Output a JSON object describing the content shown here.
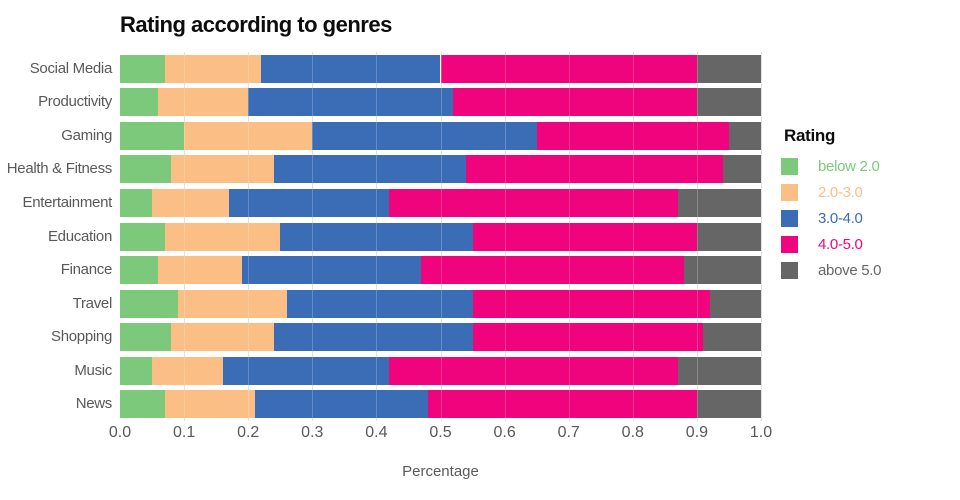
{
  "title": "Rating according to genres",
  "xlabel": "Percentage",
  "legend": {
    "title": "Rating",
    "entries": [
      {
        "label": "below 2.0",
        "color": "#7CC97C"
      },
      {
        "label": "2.0-3.0",
        "color": "#FBBE85"
      },
      {
        "label": "3.0-4.0",
        "color": "#3A6DB5"
      },
      {
        "label": "4.0-5.0",
        "color": "#F0047E"
      },
      {
        "label": "above 5.0",
        "color": "#666666"
      }
    ]
  },
  "colors": {
    "axis_text": "#595959",
    "gridline": "#d9d9d9",
    "title_text": "#0d0d0d"
  },
  "chart_data": {
    "type": "bar",
    "orientation": "horizontal",
    "stacked": true,
    "title": "Rating according to genres",
    "xlabel": "Percentage",
    "ylabel": "",
    "xlim": [
      0.0,
      1.0
    ],
    "x_ticks": [
      "0.0",
      "0.1",
      "0.2",
      "0.3",
      "0.4",
      "0.5",
      "0.6",
      "0.7",
      "0.8",
      "0.9",
      "1.0"
    ],
    "grid": true,
    "legend_position": "right",
    "categories": [
      "Social Media",
      "Productivity",
      "Gaming",
      "Health & Fitness",
      "Entertainment",
      "Education",
      "Finance",
      "Travel",
      "Shopping",
      "Music",
      "News"
    ],
    "series": [
      {
        "name": "below 2.0",
        "color": "#7CC97C",
        "values": [
          0.07,
          0.06,
          0.1,
          0.08,
          0.05,
          0.07,
          0.06,
          0.09,
          0.08,
          0.05,
          0.07
        ]
      },
      {
        "name": "2.0-3.0",
        "color": "#FBBE85",
        "values": [
          0.15,
          0.14,
          0.2,
          0.16,
          0.12,
          0.18,
          0.13,
          0.17,
          0.16,
          0.11,
          0.14
        ]
      },
      {
        "name": "3.0-4.0",
        "color": "#3A6DB5",
        "values": [
          0.28,
          0.32,
          0.35,
          0.3,
          0.25,
          0.3,
          0.28,
          0.29,
          0.31,
          0.26,
          0.27
        ]
      },
      {
        "name": "4.0-5.0",
        "color": "#F0047E",
        "values": [
          0.4,
          0.38,
          0.3,
          0.4,
          0.45,
          0.35,
          0.41,
          0.37,
          0.36,
          0.45,
          0.42
        ]
      },
      {
        "name": "above 5.0",
        "color": "#666666",
        "values": [
          0.1,
          0.1,
          0.05,
          0.06,
          0.13,
          0.1,
          0.12,
          0.08,
          0.09,
          0.13,
          0.1
        ]
      }
    ]
  }
}
